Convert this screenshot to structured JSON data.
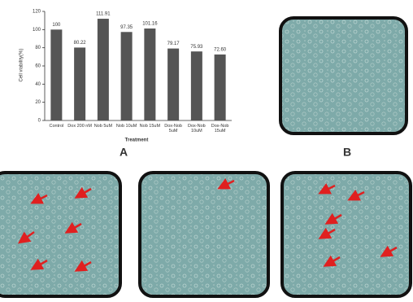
{
  "chart_data": {
    "type": "bar",
    "y_label": "Cell viability(%)",
    "x_label": "Treatment",
    "categories": [
      "Control",
      "Dox 200 nM",
      "Nob 5uM",
      "Nob 10uM",
      "Nob 15uM",
      "Dox-Nob 5uM",
      "Dox-Nob 10uM",
      "Dox-Nob 15uM"
    ],
    "values": [
      100,
      80.22,
      111.91,
      97.35,
      101.16,
      79.17,
      75.93,
      72.6
    ],
    "value_labels": [
      "100",
      "80.22",
      "111.91",
      "97.35",
      "101.16",
      "79.17",
      "75.93",
      "72.60"
    ],
    "color": "#555555",
    "ylim": [
      0,
      120
    ],
    "yticks": [
      0,
      20,
      40,
      60,
      80,
      100,
      120
    ],
    "panel_labels": [
      "A",
      "B"
    ]
  }
}
